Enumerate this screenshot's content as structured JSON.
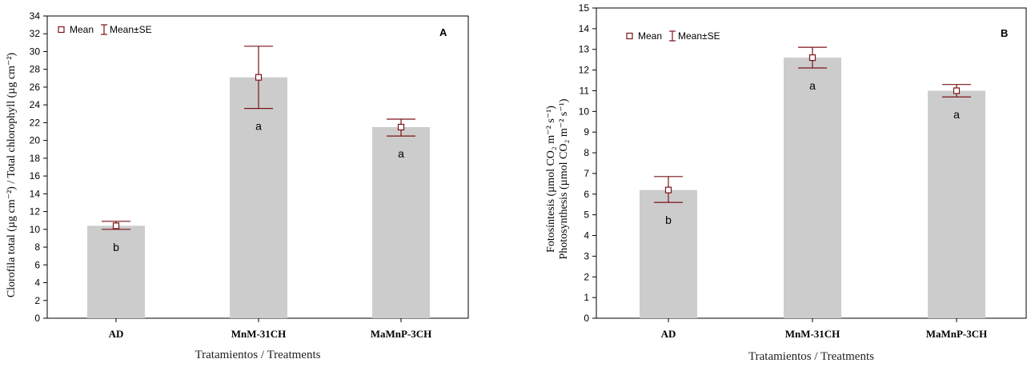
{
  "chart_data": [
    {
      "type": "bar",
      "panel_label": "A",
      "title": "",
      "categories": [
        "AD",
        "MnM-31CH",
        "MaMnP-3CH"
      ],
      "values": [
        10.4,
        27.1,
        21.5
      ],
      "se_low": [
        10.0,
        23.6,
        20.5
      ],
      "se_high": [
        10.9,
        30.6,
        22.4
      ],
      "significance": [
        "b",
        "a",
        "a"
      ],
      "xlabel": "Tratamientos / Treatments",
      "ylabel": "Clorofila total (µg cm⁻²) / Total chlorophyll (µg cm⁻²)",
      "ylim": [
        0,
        34
      ],
      "yticks": [
        0,
        2,
        4,
        6,
        8,
        10,
        12,
        14,
        16,
        18,
        20,
        22,
        24,
        26,
        28,
        30,
        32,
        34
      ],
      "legend": {
        "mean": "Mean",
        "se": "Mean±SE",
        "placement": "top-left"
      },
      "colors": {
        "bar": "#cccccc",
        "error": "#7a1418"
      }
    },
    {
      "type": "bar",
      "panel_label": "B",
      "title": "",
      "categories": [
        "AD",
        "MnM-31CH",
        "MaMnP-3CH"
      ],
      "values": [
        6.2,
        12.6,
        11.0
      ],
      "se_low": [
        5.6,
        12.1,
        10.7
      ],
      "se_high": [
        6.85,
        13.1,
        11.3
      ],
      "significance": [
        "b",
        "a",
        "a"
      ],
      "xlabel": "Tratamientos / Treatments",
      "ylabel_line1": "Fotosíntesis (µmol CO₂ m⁻² s⁻¹)",
      "ylabel_line2": "Photosynthesis (µmol CO₂ m⁻² s⁻¹)",
      "ylim": [
        0,
        15
      ],
      "yticks": [
        0,
        1,
        2,
        3,
        4,
        5,
        6,
        7,
        8,
        9,
        10,
        11,
        12,
        13,
        14,
        15
      ],
      "legend": {
        "mean": "Mean",
        "se": "Mean±SE",
        "placement": "top-left"
      },
      "colors": {
        "bar": "#cccccc",
        "error": "#7a1418"
      }
    }
  ]
}
